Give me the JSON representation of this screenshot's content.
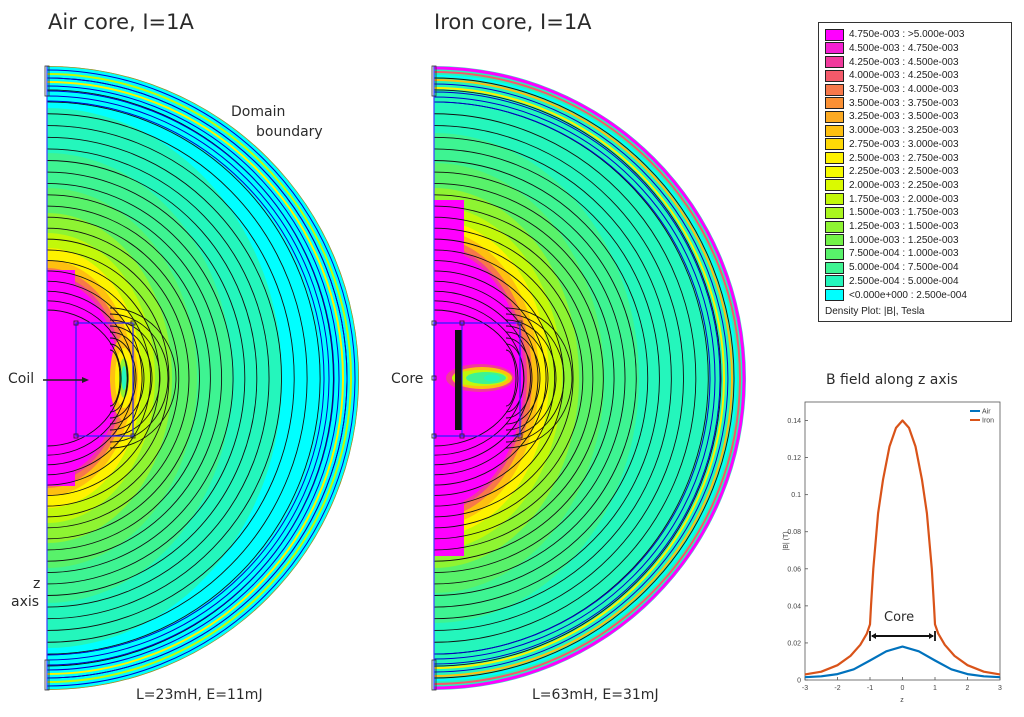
{
  "left_panel": {
    "title": "Air core, I=1A",
    "domain_label_line1": "Domain",
    "domain_label_line2": "boundary",
    "coil_label": "Coil",
    "axis_label_line1": "z",
    "axis_label_line2": "axis",
    "result": "L=23mH, E=11mJ"
  },
  "right_panel": {
    "title": "Iron core, I=1A",
    "core_label": "Core",
    "result": "L=63mH, E=31mJ"
  },
  "legend": {
    "entries": [
      {
        "label": "4.750e-003 : >5.000e-003",
        "color": "#ff00ff"
      },
      {
        "label": "4.500e-003 : 4.750e-003",
        "color": "#f41fd2"
      },
      {
        "label": "4.250e-003 : 4.500e-003",
        "color": "#f03a9c"
      },
      {
        "label": "4.000e-003 : 4.250e-003",
        "color": "#f45a6a"
      },
      {
        "label": "3.750e-003 : 4.000e-003",
        "color": "#f7784a"
      },
      {
        "label": "3.500e-003 : 3.750e-003",
        "color": "#fa9034"
      },
      {
        "label": "3.250e-003 : 3.500e-003",
        "color": "#fcaa22"
      },
      {
        "label": "3.000e-003 : 3.250e-003",
        "color": "#fec010"
      },
      {
        "label": "2.750e-003 : 3.000e-003",
        "color": "#fed906"
      },
      {
        "label": "2.500e-003 : 2.750e-003",
        "color": "#fef200"
      },
      {
        "label": "2.250e-003 : 2.500e-003",
        "color": "#f6fb00"
      },
      {
        "label": "2.000e-003 : 2.250e-003",
        "color": "#dafa00"
      },
      {
        "label": "1.750e-003 : 2.000e-003",
        "color": "#c2f80a"
      },
      {
        "label": "1.500e-003 : 1.750e-003",
        "color": "#aaf61e"
      },
      {
        "label": "1.250e-003 : 1.500e-003",
        "color": "#8ef432"
      },
      {
        "label": "1.000e-003 : 1.250e-003",
        "color": "#72f248"
      },
      {
        "label": "7.500e-004 : 1.000e-003",
        "color": "#58f26a"
      },
      {
        "label": "5.000e-004 : 7.500e-004",
        "color": "#3ef492"
      },
      {
        "label": "2.500e-004 : 5.000e-004",
        "color": "#24f6bc"
      },
      {
        "label": "<0.000e+000 : 2.500e-004",
        "color": "#00ffff"
      }
    ],
    "footer": "Density Plot: |B|, Tesla"
  },
  "chart_data": {
    "type": "line",
    "title": "B field along z axis",
    "xlabel": "z",
    "ylabel": "|B| (T)",
    "xlim": [
      -3,
      3
    ],
    "ylim": [
      0,
      0.15
    ],
    "xticks": [
      "-3",
      "-2",
      "-1",
      "0",
      "1",
      "2",
      "3"
    ],
    "yticks": [
      "0",
      "0.02",
      "0.04",
      "0.06",
      "0.08",
      "0.1",
      "0.12",
      "0.14"
    ],
    "legend_position": "top-right",
    "annotation": "Core",
    "annotation_span": [
      -1,
      1
    ],
    "series": [
      {
        "name": "Air",
        "color": "#0072bd",
        "x": [
          -3,
          -2.5,
          -2,
          -1.5,
          -1,
          -0.5,
          0,
          0.5,
          1,
          1.5,
          2,
          2.5,
          3
        ],
        "y": [
          0.0015,
          0.002,
          0.0032,
          0.0058,
          0.0105,
          0.0155,
          0.018,
          0.0155,
          0.0105,
          0.0058,
          0.0032,
          0.002,
          0.0015
        ]
      },
      {
        "name": "Iron",
        "color": "#d95319",
        "x": [
          -3,
          -2.5,
          -2,
          -1.6,
          -1.3,
          -1.1,
          -1,
          -0.97,
          -0.9,
          -0.75,
          -0.6,
          -0.4,
          -0.2,
          0,
          0.2,
          0.4,
          0.6,
          0.75,
          0.9,
          0.97,
          1,
          1.1,
          1.3,
          1.6,
          2,
          2.5,
          3
        ],
        "y": [
          0.003,
          0.0045,
          0.008,
          0.013,
          0.019,
          0.025,
          0.03,
          0.04,
          0.06,
          0.09,
          0.108,
          0.126,
          0.136,
          0.14,
          0.136,
          0.126,
          0.108,
          0.09,
          0.06,
          0.04,
          0.03,
          0.025,
          0.019,
          0.013,
          0.008,
          0.0045,
          0.003
        ]
      }
    ]
  }
}
